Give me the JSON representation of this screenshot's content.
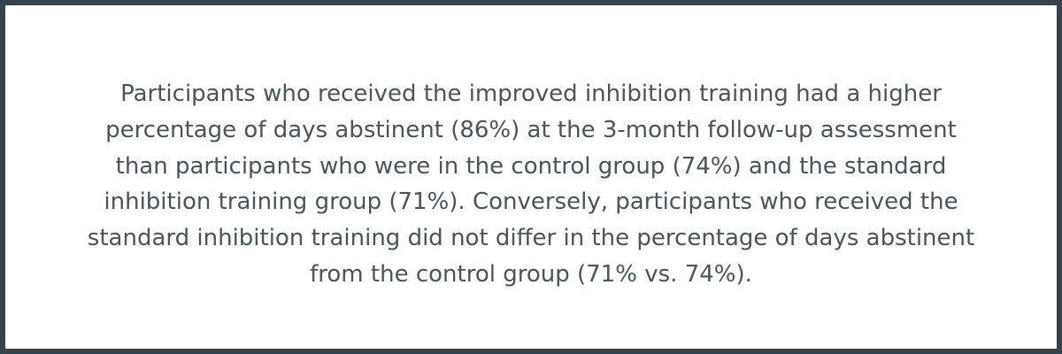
{
  "colors": {
    "border": "#37424b",
    "background": "#ffffff",
    "text": "#4a545c"
  },
  "passage": {
    "lines": [
      "Participants who received the improved inhibition training had a higher",
      "percentage of days abstinent (86%) at the 3-month follow-up assessment",
      "than participants who were in the control group (74%) and the standard",
      "inhibition training group (71%). Conversely, participants who received the",
      "standard inhibition training did not differ in the percentage of days abstinent",
      "from the control group (71% vs. 74%)."
    ]
  }
}
